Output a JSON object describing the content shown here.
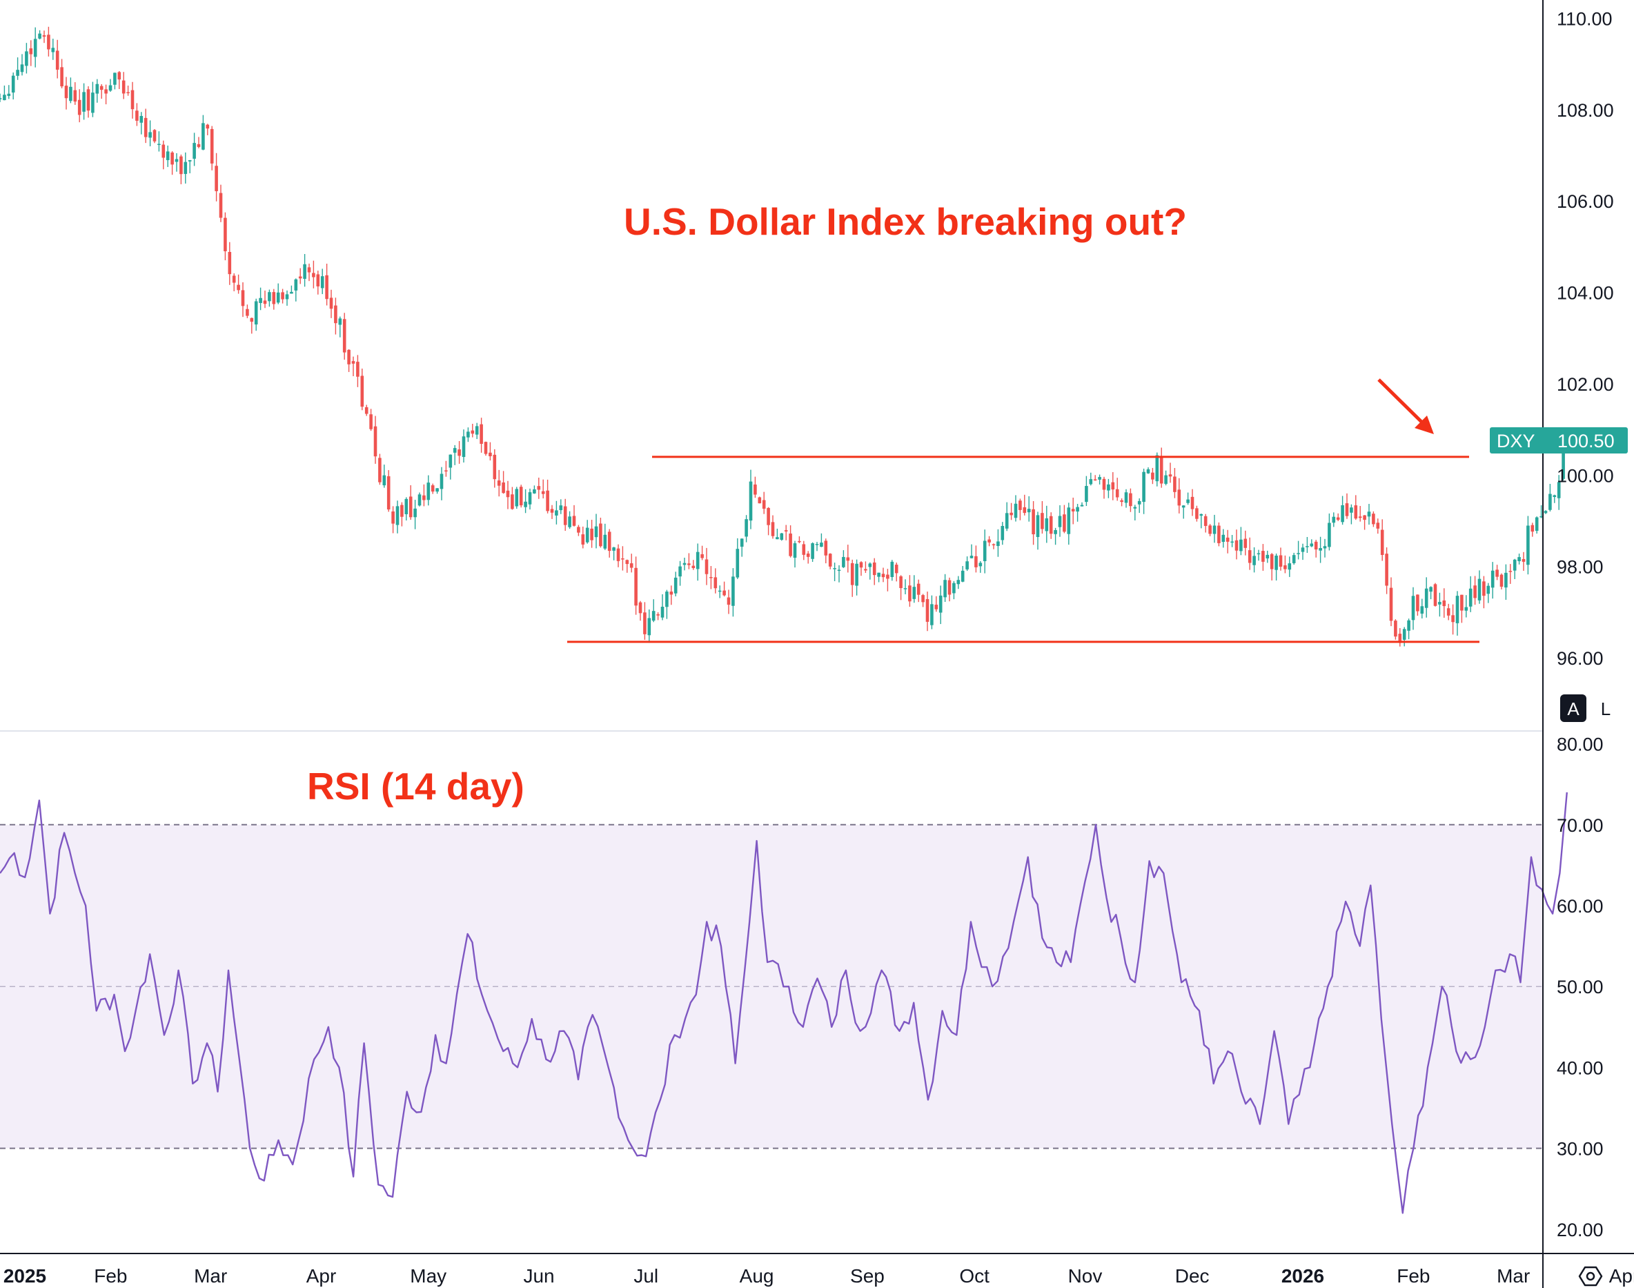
{
  "chart_data": [
    {
      "type": "candlestick",
      "symbol": "DXY",
      "last_price": "100.50",
      "title": "U.S. Dollar Index breaking out?",
      "ylim": [
        94.4,
        110.4
      ],
      "y_ticks": [
        "110.00",
        "108.00",
        "106.00",
        "104.00",
        "102.00",
        "100.00",
        "98.00",
        "96.00"
      ],
      "x_ticks": [
        "2025",
        "Feb",
        "Mar",
        "Apr",
        "May",
        "Jun",
        "Jul",
        "Aug",
        "Sep",
        "Oct",
        "Nov",
        "Dec",
        "2026",
        "Feb",
        "Mar",
        "Apr"
      ],
      "resistance_level": 100.4,
      "support_level": 96.35,
      "close_path": [
        [
          "2025-01-01",
          108.3
        ],
        [
          "2025-01-13",
          109.8
        ],
        [
          "2025-01-22",
          108.0
        ],
        [
          "2025-02-03",
          108.7
        ],
        [
          "2025-02-12",
          107.5
        ],
        [
          "2025-02-20",
          106.6
        ],
        [
          "2025-02-28",
          107.6
        ],
        [
          "2025-03-03",
          106.0
        ],
        [
          "2025-03-06",
          104.3
        ],
        [
          "2025-03-12",
          103.6
        ],
        [
          "2025-03-20",
          103.9
        ],
        [
          "2025-03-28",
          104.4
        ],
        [
          "2025-04-03",
          104.0
        ],
        [
          "2025-04-07",
          103.0
        ],
        [
          "2025-04-10",
          102.4
        ],
        [
          "2025-04-16",
          100.5
        ],
        [
          "2025-04-21",
          99.1
        ],
        [
          "2025-04-28",
          99.4
        ],
        [
          "2025-05-05",
          99.8
        ],
        [
          "2025-05-12",
          101.0
        ],
        [
          "2025-05-16",
          100.8
        ],
        [
          "2025-05-23",
          99.5
        ],
        [
          "2025-06-02",
          99.4
        ],
        [
          "2025-06-12",
          98.8
        ],
        [
          "2025-06-20",
          98.5
        ],
        [
          "2025-06-27",
          97.7
        ],
        [
          "2025-07-01",
          96.7
        ],
        [
          "2025-07-08",
          97.5
        ],
        [
          "2025-07-16",
          98.3
        ],
        [
          "2025-07-24",
          97.3
        ],
        [
          "2025-07-31",
          99.9
        ],
        [
          "2025-08-05",
          98.8
        ],
        [
          "2025-08-12",
          98.3
        ],
        [
          "2025-08-20",
          98.3
        ],
        [
          "2025-08-28",
          97.8
        ],
        [
          "2025-09-05",
          98.0
        ],
        [
          "2025-09-12",
          97.6
        ],
        [
          "2025-09-17",
          96.9
        ],
        [
          "2025-09-22",
          97.5
        ],
        [
          "2025-09-29",
          98.0
        ],
        [
          "2025-10-06",
          98.5
        ],
        [
          "2025-10-13",
          99.2
        ],
        [
          "2025-10-20",
          98.8
        ],
        [
          "2025-10-27",
          99.0
        ],
        [
          "2025-11-03",
          100.0
        ],
        [
          "2025-11-07",
          99.8
        ],
        [
          "2025-11-14",
          99.4
        ],
        [
          "2025-11-21",
          100.2
        ],
        [
          "2025-11-28",
          99.4
        ],
        [
          "2025-12-05",
          99.0
        ],
        [
          "2025-12-12",
          98.5
        ],
        [
          "2025-12-19",
          98.3
        ],
        [
          "2025-12-26",
          97.9
        ],
        [
          "2026-01-05",
          98.5
        ],
        [
          "2026-01-13",
          99.2
        ],
        [
          "2026-01-20",
          99.1
        ],
        [
          "2026-01-23",
          98.3
        ],
        [
          "2026-01-27",
          96.2
        ],
        [
          "2026-01-30",
          96.9
        ],
        [
          "2026-02-05",
          97.5
        ],
        [
          "2026-02-10",
          96.9
        ],
        [
          "2026-02-18",
          97.4
        ],
        [
          "2026-02-24",
          97.8
        ],
        [
          "2026-03-02",
          97.9
        ],
        [
          "2026-03-06",
          98.9
        ],
        [
          "2026-03-11",
          99.3
        ],
        [
          "2026-03-16",
          100.5
        ]
      ]
    },
    {
      "type": "line",
      "title": "RSI (14 day)",
      "ylim": [
        17.0,
        81.5
      ],
      "y_ticks": [
        "80.00",
        "70.00",
        "60.00",
        "50.00",
        "40.00",
        "30.00",
        "20.00"
      ],
      "band": [
        30,
        70
      ],
      "dashed_levels": [
        70,
        50,
        30
      ],
      "series": [
        {
          "color": "#7e57c2",
          "points": [
            [
              "2025-01-01",
              64
            ],
            [
              "2025-01-05",
              66.5
            ],
            [
              "2025-01-08",
              63.5
            ],
            [
              "2025-01-12",
              73
            ],
            [
              "2025-01-15",
              59
            ],
            [
              "2025-01-19",
              69
            ],
            [
              "2025-01-22",
              64
            ],
            [
              "2025-01-25",
              60
            ],
            [
              "2025-01-28",
              47
            ],
            [
              "2025-02-02",
              49
            ],
            [
              "2025-02-05",
              42
            ],
            [
              "2025-02-08",
              47
            ],
            [
              "2025-02-12",
              54
            ],
            [
              "2025-02-16",
              44
            ],
            [
              "2025-02-20",
              52
            ],
            [
              "2025-02-24",
              38
            ],
            [
              "2025-02-28",
              43
            ],
            [
              "2025-03-03",
              37
            ],
            [
              "2025-03-06",
              52
            ],
            [
              "2025-03-12",
              30
            ],
            [
              "2025-03-16",
              26
            ],
            [
              "2025-03-20",
              31
            ],
            [
              "2025-03-24",
              28
            ],
            [
              "2025-03-30",
              41
            ],
            [
              "2025-04-03",
              45
            ],
            [
              "2025-04-06",
              40
            ],
            [
              "2025-04-10",
              26.5
            ],
            [
              "2025-04-13",
              43
            ],
            [
              "2025-04-17",
              25.5
            ],
            [
              "2025-04-21",
              24
            ],
            [
              "2025-04-25",
              37
            ],
            [
              "2025-04-29",
              34.5
            ],
            [
              "2025-05-03",
              44
            ],
            [
              "2025-05-06",
              40.5
            ],
            [
              "2025-05-12",
              56.5
            ],
            [
              "2025-05-16",
              49
            ],
            [
              "2025-05-22",
              42
            ],
            [
              "2025-05-26",
              40
            ],
            [
              "2025-05-30",
              46
            ],
            [
              "2025-06-03",
              41
            ],
            [
              "2025-06-08",
              44.5
            ],
            [
              "2025-06-12",
              38.5
            ],
            [
              "2025-06-16",
              46.5
            ],
            [
              "2025-06-22",
              37.5
            ],
            [
              "2025-06-26",
              31
            ],
            [
              "2025-07-01",
              29
            ],
            [
              "2025-07-05",
              36
            ],
            [
              "2025-07-09",
              44
            ],
            [
              "2025-07-15",
              49
            ],
            [
              "2025-07-18",
              58
            ],
            [
              "2025-07-22",
              55
            ],
            [
              "2025-07-26",
              40.5
            ],
            [
              "2025-07-30",
              58
            ],
            [
              "2025-08-01",
              68
            ],
            [
              "2025-08-04",
              53
            ],
            [
              "2025-08-10",
              50
            ],
            [
              "2025-08-14",
              45
            ],
            [
              "2025-08-18",
              51
            ],
            [
              "2025-08-22",
              45
            ],
            [
              "2025-08-26",
              52
            ],
            [
              "2025-08-30",
              44.5
            ],
            [
              "2025-09-05",
              52
            ],
            [
              "2025-09-10",
              44.5
            ],
            [
              "2025-09-14",
              48
            ],
            [
              "2025-09-18",
              36
            ],
            [
              "2025-09-22",
              47
            ],
            [
              "2025-09-26",
              44
            ],
            [
              "2025-09-30",
              58
            ],
            [
              "2025-10-06",
              50
            ],
            [
              "2025-10-12",
              58
            ],
            [
              "2025-10-16",
              66
            ],
            [
              "2025-10-20",
              56
            ],
            [
              "2025-10-24",
              53
            ],
            [
              "2025-10-28",
              53
            ],
            [
              "2025-11-01",
              63
            ],
            [
              "2025-11-04",
              70
            ],
            [
              "2025-11-07",
              61
            ],
            [
              "2025-11-11",
              56
            ],
            [
              "2025-11-15",
              50.5
            ],
            [
              "2025-11-19",
              65.5
            ],
            [
              "2025-11-23",
              64
            ],
            [
              "2025-11-28",
              50.5
            ],
            [
              "2025-12-03",
              47
            ],
            [
              "2025-12-07",
              38
            ],
            [
              "2025-12-11",
              42
            ],
            [
              "2025-12-16",
              35.5
            ],
            [
              "2025-12-20",
              33
            ],
            [
              "2025-12-24",
              44.5
            ],
            [
              "2025-12-28",
              33
            ],
            [
              "2026-01-03",
              40
            ],
            [
              "2026-01-08",
              50
            ],
            [
              "2026-01-13",
              60.5
            ],
            [
              "2026-01-17",
              55
            ],
            [
              "2026-01-20",
              62.5
            ],
            [
              "2026-01-23",
              46
            ],
            [
              "2026-01-26",
              33
            ],
            [
              "2026-01-29",
              22
            ],
            [
              "2026-02-01",
              30
            ],
            [
              "2026-02-05",
              40
            ],
            [
              "2026-02-09",
              50
            ],
            [
              "2026-02-13",
              42
            ],
            [
              "2026-02-17",
              41
            ],
            [
              "2026-02-21",
              45
            ],
            [
              "2026-02-24",
              52
            ],
            [
              "2026-02-28",
              54
            ],
            [
              "2026-03-03",
              50.5
            ],
            [
              "2026-03-06",
              66
            ],
            [
              "2026-03-09",
              62
            ],
            [
              "2026-03-12",
              59
            ],
            [
              "2026-03-14",
              64
            ],
            [
              "2026-03-16",
              74
            ]
          ]
        }
      ]
    }
  ],
  "ui": {
    "scale_buttons": {
      "auto": "A",
      "log": "L"
    },
    "settings_icon": "gear-icon"
  },
  "colors": {
    "up": "#26a69a",
    "down": "#ef5350",
    "annotation": "#f23118",
    "rsi_line": "#7e57c2",
    "rsi_band": "#f3eef9"
  }
}
